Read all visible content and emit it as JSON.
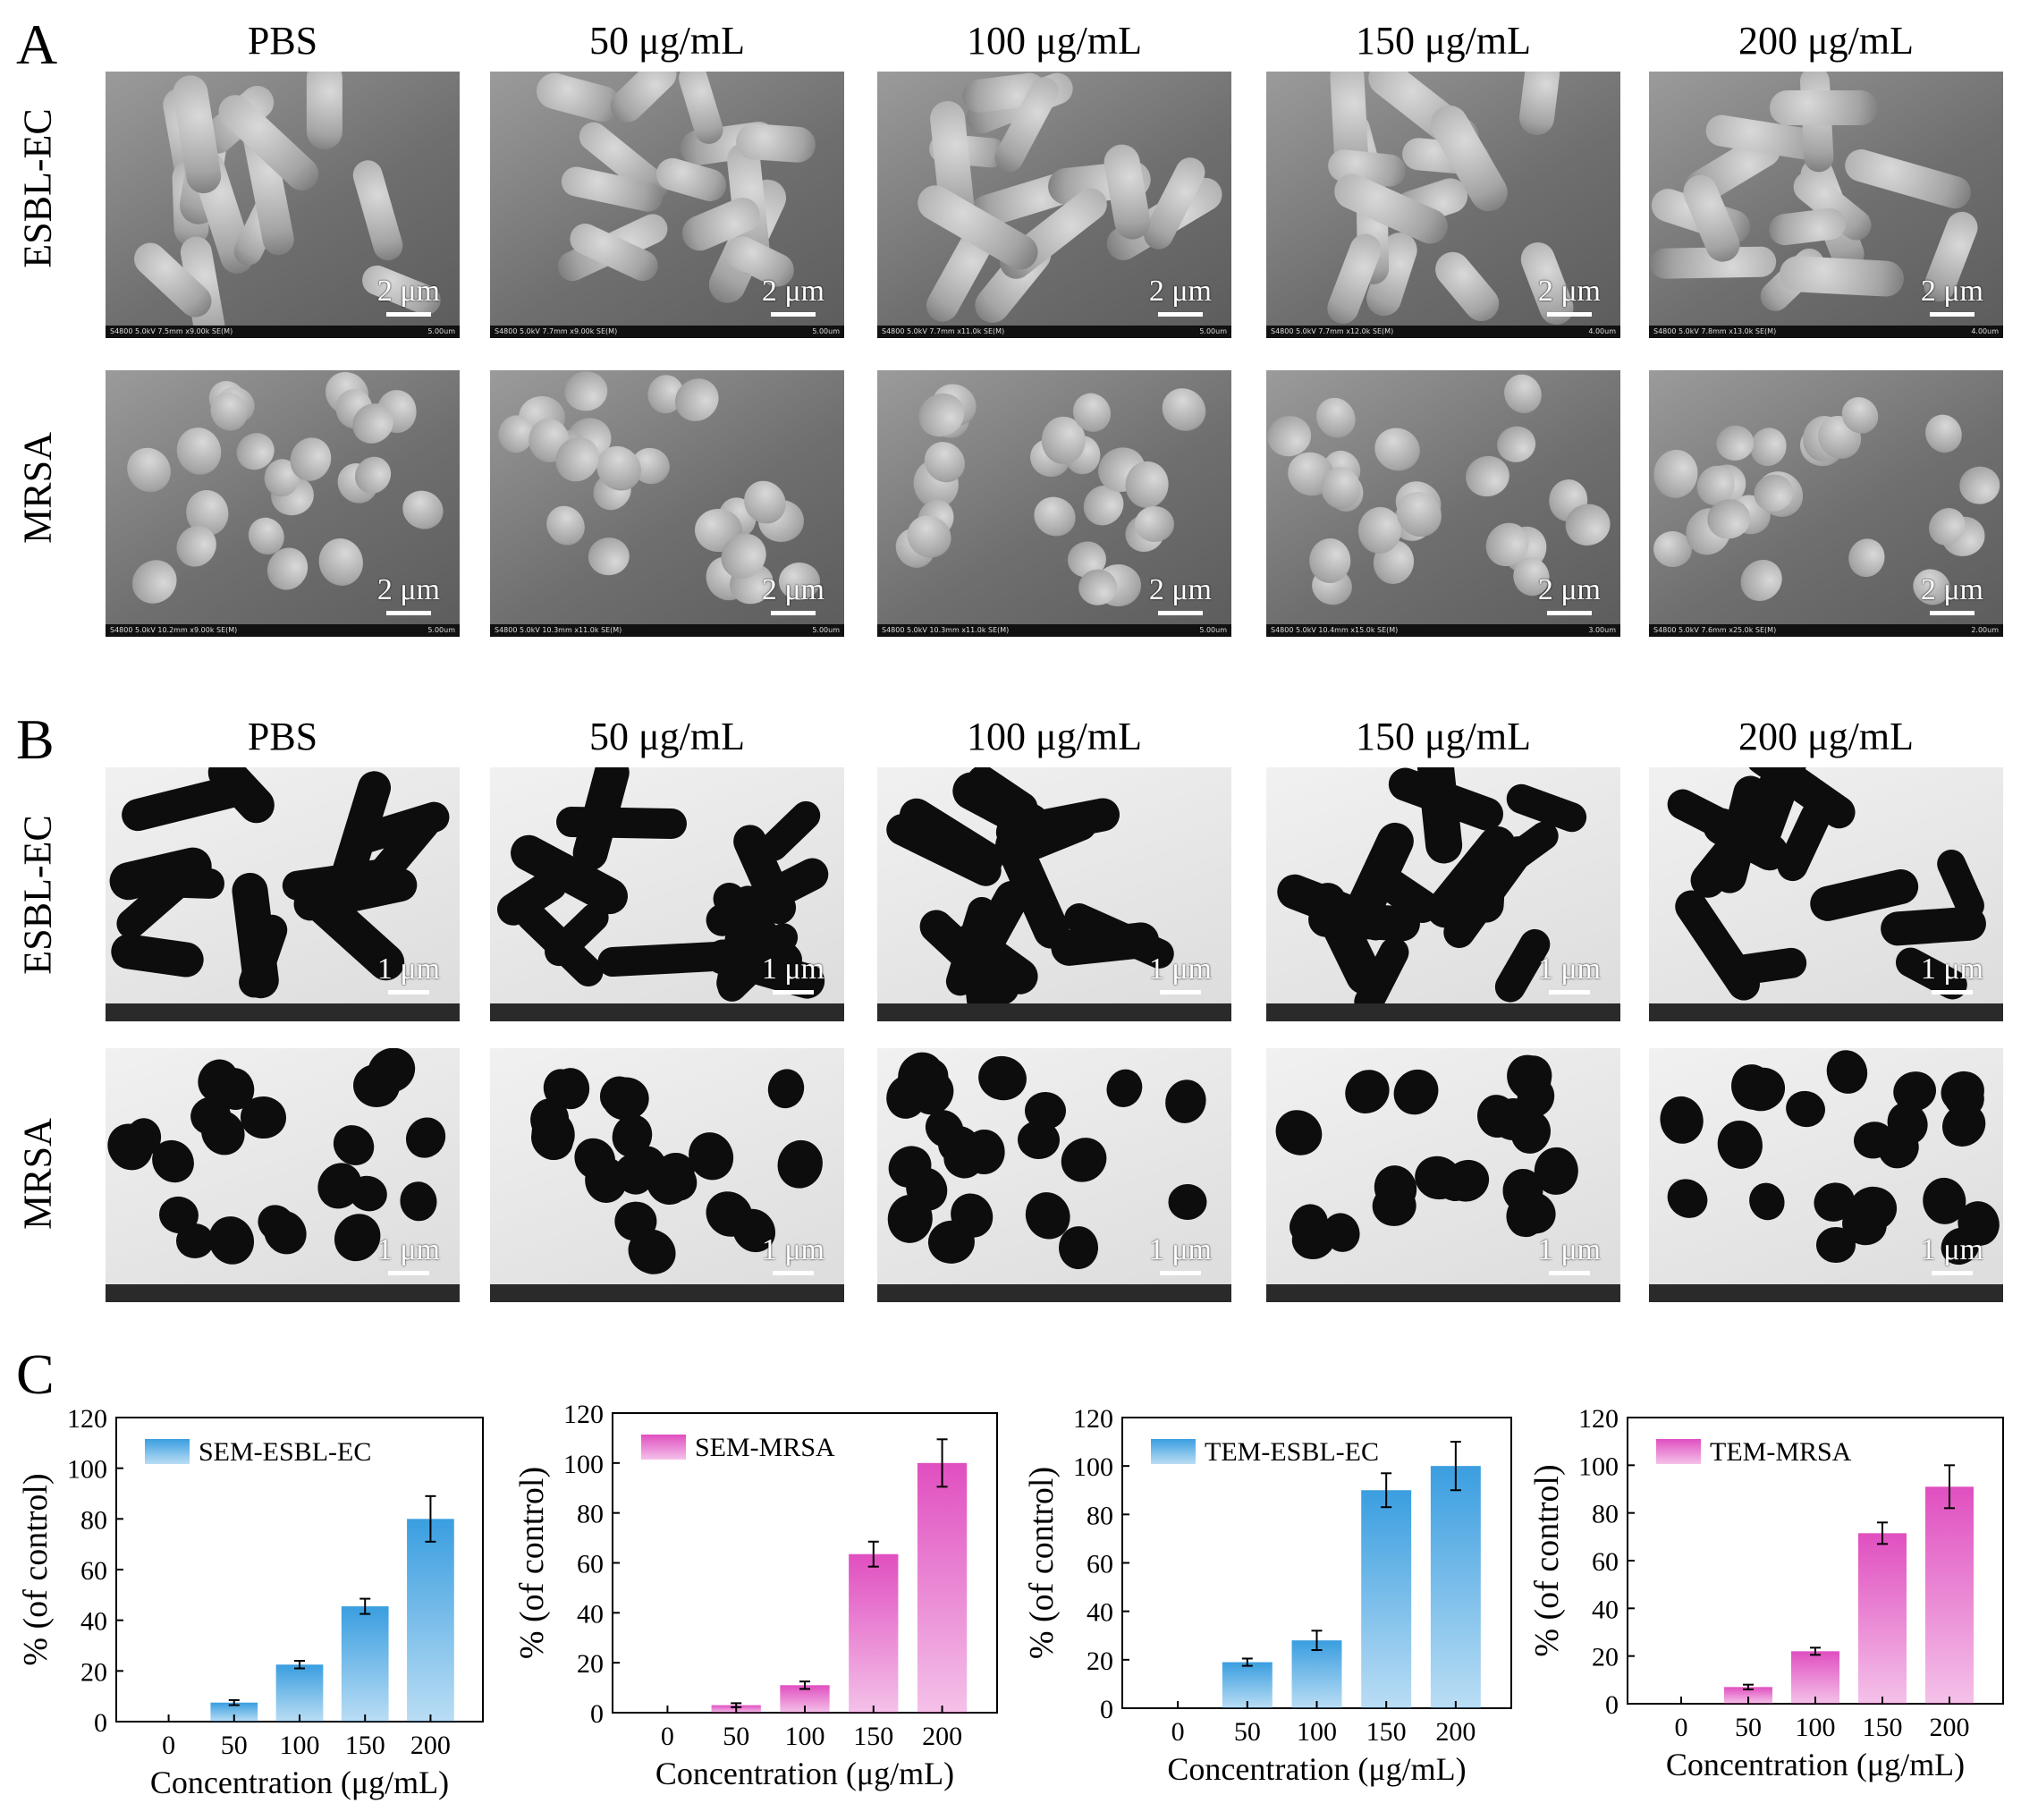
{
  "panel_a": {
    "letter": "A",
    "columns": [
      "PBS",
      "50 μg/mL",
      "100 μg/mL",
      "150 μg/mL",
      "200 μg/mL"
    ],
    "rows": [
      "ESBL-EC",
      "MRSA"
    ],
    "scale_label": "2 μm",
    "info_esbl": [
      "S4800 5.0kV 7.5mm x9.00k SE(M)",
      "S4800 5.0kV 7.7mm x9.00k SE(M)",
      "S4800 5.0kV 7.7mm x11.0k SE(M)",
      "S4800 5.0kV 7.7mm x12.0k SE(M)",
      "S4800 5.0kV 7.8mm x13.0k SE(M)"
    ],
    "info_esbl_right": [
      "5.00um",
      "5.00um",
      "5.00um",
      "4.00um",
      "4.00um"
    ],
    "info_mrsa": [
      "S4800 5.0kV 10.2mm x9.00k SE(M)",
      "S4800 5.0kV 10.3mm x11.0k SE(M)",
      "S4800 5.0kV 10.3mm x11.0k SE(M)",
      "S4800 5.0kV 10.4mm x15.0k SE(M)",
      "S4800 5.0kV 7.6mm x25.0k SE(M)"
    ],
    "info_mrsa_right": [
      "5.00um",
      "5.00um",
      "5.00um",
      "3.00um",
      "2.00um"
    ]
  },
  "panel_b": {
    "letter": "B",
    "columns": [
      "PBS",
      "50 μg/mL",
      "100 μg/mL",
      "150 μg/mL",
      "200 μg/mL"
    ],
    "rows": [
      "ESBL-EC",
      "MRSA"
    ],
    "scale_label": "1 μm"
  },
  "panel_c": {
    "letter": "C",
    "charts": [
      {
        "legend": "SEM-ESBL-EC",
        "color": "#3a9ee0"
      },
      {
        "legend": "SEM-MRSA",
        "color": "#e04fc0"
      },
      {
        "legend": "TEM-ESBL-EC",
        "color": "#3a9ee0"
      },
      {
        "legend": "TEM-MRSA",
        "color": "#e04fc0"
      }
    ]
  },
  "chart_data": [
    {
      "type": "bar",
      "title": "",
      "legend": "SEM-ESBL-EC",
      "categories": [
        "0",
        "50",
        "100",
        "150",
        "200"
      ],
      "values": [
        0,
        7.5,
        22.5,
        45.5,
        80
      ],
      "errors": [
        0,
        1,
        1.5,
        3,
        9
      ],
      "xlabel": "Concentration (μg/mL)",
      "ylabel": "% (of control)",
      "ylim": [
        0,
        120
      ],
      "yticks": [
        0,
        20,
        40,
        60,
        80,
        100,
        120
      ]
    },
    {
      "type": "bar",
      "title": "",
      "legend": "SEM-MRSA",
      "categories": [
        "0",
        "50",
        "100",
        "150",
        "200"
      ],
      "values": [
        0,
        3,
        11,
        63.5,
        100
      ],
      "errors": [
        0,
        0.8,
        1.5,
        5,
        9.5
      ],
      "xlabel": "Concentration (μg/mL)",
      "ylabel": "% (of control)",
      "ylim": [
        0,
        120
      ],
      "yticks": [
        0,
        20,
        40,
        60,
        80,
        100,
        120
      ]
    },
    {
      "type": "bar",
      "title": "",
      "legend": "TEM-ESBL-EC",
      "categories": [
        "0",
        "50",
        "100",
        "150",
        "200"
      ],
      "values": [
        0,
        19,
        28,
        90,
        100
      ],
      "errors": [
        0,
        1.5,
        4,
        7,
        10
      ],
      "xlabel": "Concentration (μg/mL)",
      "ylabel": "% (of control)",
      "ylim": [
        0,
        120
      ],
      "yticks": [
        0,
        20,
        40,
        60,
        80,
        100,
        120
      ]
    },
    {
      "type": "bar",
      "title": "",
      "legend": "TEM-MRSA",
      "categories": [
        "0",
        "50",
        "100",
        "150",
        "200"
      ],
      "values": [
        0,
        7,
        22,
        71.5,
        91
      ],
      "errors": [
        0,
        1,
        1.5,
        4.5,
        9
      ],
      "xlabel": "Concentration (μg/mL)",
      "ylabel": "% (of control)",
      "ylim": [
        0,
        120
      ],
      "yticks": [
        0,
        20,
        40,
        60,
        80,
        100,
        120
      ]
    }
  ]
}
